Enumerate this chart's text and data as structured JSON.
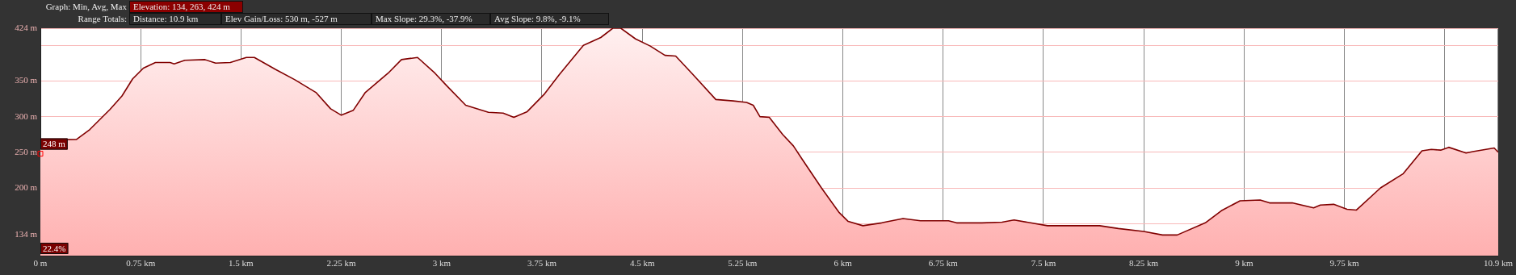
{
  "chart_data": {
    "type": "area",
    "annotations": [
      "Graph: Min, Avg, Max",
      "Elevation: 134, 263, 424 m",
      "Range Totals:",
      "Distance: 10.9 km",
      "Elev Gain/Loss: 530 m, -527 m",
      "Max Slope: 29.3%, -37.9%",
      "Avg Slope: 9.8%, -9.1%",
      "22.4%",
      {
        "text": "248 m",
        "x": 0,
        "y": 248
      }
    ],
    "x": [
      0,
      0.27,
      0.37,
      0.52,
      0.61,
      0.69,
      0.77,
      0.86,
      0.97,
      1.0,
      1.08,
      1.23,
      1.31,
      1.42,
      1.54,
      1.6,
      1.76,
      1.9,
      2.06,
      2.17,
      2.25,
      2.34,
      2.43,
      2.6,
      2.7,
      2.82,
      2.95,
      3.04,
      3.18,
      3.35,
      3.46,
      3.54,
      3.64,
      3.77,
      3.88,
      4.06,
      4.19,
      4.28,
      4.34,
      4.45,
      4.56,
      4.67,
      4.75,
      4.87,
      5.05,
      5.18,
      5.28,
      5.33,
      5.38,
      5.45,
      5.55,
      5.63,
      5.7,
      5.84,
      5.97,
      6.04,
      6.15,
      6.29,
      6.45,
      6.58,
      6.79,
      6.85,
      7.04,
      7.19,
      7.28,
      7.53,
      7.92,
      8.06,
      8.25,
      8.39,
      8.5,
      8.71,
      8.83,
      8.97,
      9.12,
      9.19,
      9.36,
      9.52,
      9.57,
      9.67,
      9.77,
      9.84,
      10.02,
      10.19,
      10.33,
      10.4,
      10.47,
      10.53,
      10.66,
      10.71,
      10.87,
      10.9
    ],
    "series": [
      {
        "color": "#800000",
        "values": [
          267,
          268,
          282,
          310,
          329,
          353,
          368,
          376,
          376,
          374,
          379,
          380,
          375,
          376,
          383,
          383,
          366,
          352,
          334,
          311,
          302,
          309,
          334,
          361,
          380,
          383,
          361,
          343,
          316,
          306,
          305,
          299,
          307,
          332,
          359,
          400,
          411,
          424,
          424,
          409,
          399,
          386,
          385,
          361,
          324,
          322,
          320,
          316,
          300,
          299,
          275,
          259,
          239,
          200,
          166,
          153,
          147,
          151,
          157,
          154,
          154,
          151,
          151,
          152,
          155,
          147,
          147,
          143,
          139,
          134,
          134,
          151,
          168,
          182,
          183,
          179,
          179,
          172,
          176,
          177,
          170,
          169,
          200,
          220,
          252,
          254,
          253,
          257,
          249,
          251,
          256,
          250
        ]
      }
    ],
    "xlim": [
      0,
      10.9
    ],
    "xticks": [
      {
        "value": 0,
        "label": "0 m"
      },
      {
        "value": 0.75,
        "label": "0.75 km"
      },
      {
        "value": 1.5,
        "label": "1.5 km"
      },
      {
        "value": 2.25,
        "label": "2.25 km"
      },
      {
        "value": 3,
        "label": "3 km"
      },
      {
        "value": 3.75,
        "label": "3.75 km"
      },
      {
        "value": 4.5,
        "label": "4.5 km"
      },
      {
        "value": 5.25,
        "label": "5.25 km"
      },
      {
        "value": 6,
        "label": "6 km"
      },
      {
        "value": 6.75,
        "label": "6.75 km"
      },
      {
        "value": 7.5,
        "label": "7.5 km"
      },
      {
        "value": 8.25,
        "label": "8.25 km"
      },
      {
        "value": 9,
        "label": "9 km"
      },
      {
        "value": 9.75,
        "label": "9.75 km"
      },
      {
        "value": 10.5,
        "label": null
      },
      {
        "value": 10.9,
        "label": "10.9 km"
      }
    ],
    "ylim": [
      105,
      424
    ],
    "yticks": [
      {
        "value": 134,
        "label": "134 m"
      },
      {
        "value": 150,
        "label": null
      },
      {
        "value": 200,
        "label": "200 m"
      },
      {
        "value": 250,
        "label": "250 m"
      },
      {
        "value": 300,
        "label": "300 m"
      },
      {
        "value": 350,
        "label": "350 m"
      },
      {
        "value": 400,
        "label": null
      },
      {
        "value": 424,
        "label": "424 m"
      }
    ],
    "grid": true,
    "legend": false,
    "marker": "none",
    "line_style": "solid"
  }
}
